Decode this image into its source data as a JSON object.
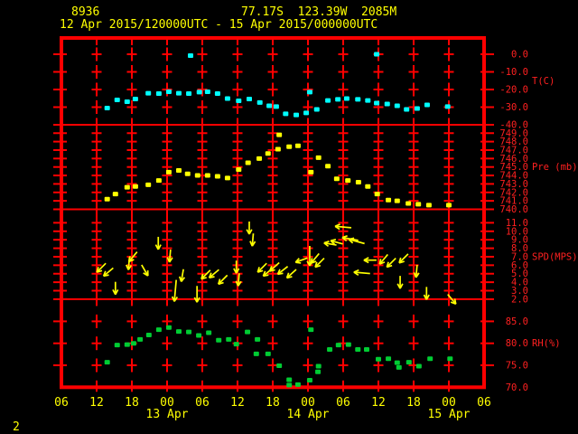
{
  "header": {
    "station_id": "8936",
    "location": "77.17S  123.39W  2085M",
    "period": "12 Apr 2015/120000UTC - 15 Apr 2015/000000UTC"
  },
  "footer": {
    "page_number": "2"
  },
  "colors": {
    "background": "#000000",
    "grid": "#ff0000",
    "axis_label": "#ff2020",
    "header_text": "#ffff00",
    "temperature": "#00ffff",
    "pressure": "#ffff00",
    "wind": "#ffff00",
    "humidity": "#00cc33"
  },
  "chart_data": {
    "type": "scatter",
    "x_axis": {
      "hour_range": [
        6,
        78
      ],
      "hours_per_division": 6,
      "tick_labels": [
        "06",
        "12",
        "18",
        "00",
        "06",
        "12",
        "18",
        "00",
        "06",
        "12",
        "18",
        "00",
        "06"
      ],
      "date_labels": [
        {
          "label": "13 Apr",
          "col": 3
        },
        {
          "label": "14 Apr",
          "col": 7
        },
        {
          "label": "15 Apr",
          "col": 11
        }
      ]
    },
    "panels": [
      {
        "name": "temperature",
        "ylabel": "T(C)",
        "label_at": -15,
        "ticks": [
          "0.0",
          "-10.0",
          "-20.0",
          "-30.0",
          "-40.0"
        ],
        "points": [
          [
            13.8,
            -30.5
          ],
          [
            15.5,
            -25.9
          ],
          [
            17.2,
            -26.9
          ],
          [
            18.6,
            -25.4
          ],
          [
            20.8,
            -22.1
          ],
          [
            22.6,
            -22.3
          ],
          [
            24.3,
            -21.3
          ],
          [
            26.0,
            -22.1
          ],
          [
            27.7,
            -22.3
          ],
          [
            28.0,
            -0.8
          ],
          [
            29.5,
            -21.5
          ],
          [
            30.9,
            -21.3
          ],
          [
            32.6,
            -22.3
          ],
          [
            34.3,
            -25.1
          ],
          [
            36.2,
            -26.4
          ],
          [
            38.0,
            -25.4
          ],
          [
            39.8,
            -27.4
          ],
          [
            41.4,
            -29.2
          ],
          [
            42.6,
            -29.7
          ],
          [
            44.2,
            -33.8
          ],
          [
            46.0,
            -34.4
          ],
          [
            47.7,
            -33.3
          ],
          [
            48.3,
            -21.5
          ],
          [
            49.5,
            -31.3
          ],
          [
            51.4,
            -26.2
          ],
          [
            53.1,
            -25.6
          ],
          [
            54.6,
            -25.1
          ],
          [
            56.5,
            -25.6
          ],
          [
            58.2,
            -26.2
          ],
          [
            59.7,
            0.0
          ],
          [
            59.7,
            -27.7
          ],
          [
            61.5,
            -28.2
          ],
          [
            63.2,
            -29.2
          ],
          [
            64.8,
            -31.3
          ],
          [
            66.6,
            -30.8
          ],
          [
            68.3,
            -28.7
          ],
          [
            71.8,
            -29.7
          ]
        ]
      },
      {
        "name": "pressure",
        "ylabel": "Pre (mb)",
        "label_at": 745,
        "ticks": [
          "749.0",
          "748.0",
          "747.0",
          "746.0",
          "745.0",
          "744.0",
          "743.0",
          "742.0",
          "741.0",
          "740.0"
        ],
        "points": [
          [
            13.8,
            741.2
          ],
          [
            15.2,
            741.8
          ],
          [
            17.2,
            742.6
          ],
          [
            18.6,
            742.7
          ],
          [
            20.8,
            742.9
          ],
          [
            22.6,
            743.4
          ],
          [
            24.3,
            744.4
          ],
          [
            26.0,
            744.6
          ],
          [
            27.5,
            744.2
          ],
          [
            29.2,
            744.0
          ],
          [
            30.9,
            744.0
          ],
          [
            32.6,
            743.9
          ],
          [
            34.3,
            743.7
          ],
          [
            36.2,
            744.7
          ],
          [
            37.8,
            745.5
          ],
          [
            39.7,
            746.0
          ],
          [
            41.2,
            746.6
          ],
          [
            42.9,
            747.1
          ],
          [
            43.1,
            748.8
          ],
          [
            44.8,
            747.4
          ],
          [
            46.3,
            747.5
          ],
          [
            48.5,
            744.4
          ],
          [
            49.8,
            746.1
          ],
          [
            51.4,
            745.1
          ],
          [
            52.9,
            743.6
          ],
          [
            54.8,
            743.4
          ],
          [
            56.6,
            743.2
          ],
          [
            58.2,
            742.7
          ],
          [
            59.8,
            741.8
          ],
          [
            61.7,
            741.1
          ],
          [
            63.2,
            741.0
          ],
          [
            65.1,
            740.7
          ],
          [
            66.8,
            740.6
          ],
          [
            68.6,
            740.5
          ],
          [
            72.0,
            740.5
          ]
        ]
      },
      {
        "name": "wind_speed",
        "ylabel": "SPD(MPS)",
        "label_at": 7,
        "ticks": [
          "11.0",
          "10.0",
          "9.0",
          "8.0",
          "7.0",
          "6.0",
          "5.0",
          "4.0",
          "3.0",
          "2.0"
        ],
        "arrows": [
          [
            12.8,
            5.7,
            135
          ],
          [
            14.0,
            5.2,
            140
          ],
          [
            15.2,
            3.3,
            90
          ],
          [
            17.5,
            6.2,
            95
          ],
          [
            18.2,
            7.0,
            130
          ],
          [
            20.2,
            5.4,
            60
          ],
          [
            22.5,
            8.6,
            90
          ],
          [
            24.5,
            7.1,
            95
          ],
          [
            25.4,
            3.0,
            95,
            24
          ],
          [
            26.6,
            4.8,
            100
          ],
          [
            29.1,
            2.6,
            90,
            18
          ],
          [
            30.6,
            4.9,
            135
          ],
          [
            32.0,
            5.0,
            140
          ],
          [
            33.5,
            4.3,
            135
          ],
          [
            35.8,
            5.8,
            90
          ],
          [
            36.2,
            4.3,
            95
          ],
          [
            38.0,
            10.4,
            90
          ],
          [
            38.6,
            9.0,
            95
          ],
          [
            40.2,
            5.7,
            135
          ],
          [
            41.2,
            5.2,
            140
          ],
          [
            42.3,
            5.8,
            138
          ],
          [
            43.7,
            5.4,
            142
          ],
          [
            45.2,
            5.0,
            138
          ],
          [
            46.9,
            6.6,
            160
          ],
          [
            48.3,
            7.1,
            90,
            22
          ],
          [
            49.2,
            6.8,
            130
          ],
          [
            50.0,
            6.3,
            135
          ],
          [
            51.8,
            8.5,
            190
          ],
          [
            52.9,
            8.7,
            195
          ],
          [
            54.0,
            10.5,
            185,
            18
          ],
          [
            55.2,
            9.1,
            190,
            18
          ],
          [
            56.3,
            8.8,
            195,
            18
          ],
          [
            57.2,
            5.1,
            185,
            18
          ],
          [
            58.6,
            6.6,
            180
          ],
          [
            60.9,
            6.7,
            130
          ],
          [
            62.2,
            6.3,
            135
          ],
          [
            64.3,
            6.8,
            135
          ],
          [
            63.7,
            4.0,
            90
          ],
          [
            66.5,
            5.3,
            95
          ],
          [
            68.2,
            2.7,
            90
          ],
          [
            72.5,
            2.0,
            50
          ]
        ]
      },
      {
        "name": "humidity",
        "ylabel": "RH(%)",
        "label_at": 80,
        "ticks": [
          "85.0",
          "80.0",
          "75.0",
          "70.0"
        ],
        "points": [
          [
            13.8,
            75.7
          ],
          [
            15.5,
            79.6
          ],
          [
            17.2,
            79.7
          ],
          [
            18.3,
            80.0
          ],
          [
            19.4,
            80.9
          ],
          [
            20.9,
            81.9
          ],
          [
            22.6,
            83.1
          ],
          [
            24.3,
            83.6
          ],
          [
            26.0,
            82.7
          ],
          [
            27.7,
            82.6
          ],
          [
            29.4,
            81.8
          ],
          [
            31.1,
            82.4
          ],
          [
            32.8,
            80.7
          ],
          [
            34.5,
            80.9
          ],
          [
            35.8,
            79.8
          ],
          [
            37.7,
            82.6
          ],
          [
            39.2,
            77.6
          ],
          [
            39.4,
            80.9
          ],
          [
            41.2,
            77.6
          ],
          [
            43.1,
            74.9
          ],
          [
            44.8,
            71.7
          ],
          [
            44.8,
            70.5
          ],
          [
            46.3,
            70.6
          ],
          [
            48.3,
            71.6
          ],
          [
            48.5,
            83.1
          ],
          [
            49.7,
            73.5
          ],
          [
            49.8,
            74.8
          ],
          [
            51.7,
            78.6
          ],
          [
            53.2,
            79.6
          ],
          [
            54.9,
            79.7
          ],
          [
            56.5,
            78.6
          ],
          [
            58.0,
            78.6
          ],
          [
            60.0,
            76.4
          ],
          [
            61.7,
            76.5
          ],
          [
            63.2,
            75.6
          ],
          [
            63.5,
            74.5
          ],
          [
            65.2,
            75.7
          ],
          [
            66.9,
            74.8
          ],
          [
            68.8,
            76.5
          ],
          [
            72.2,
            76.5
          ]
        ]
      }
    ]
  }
}
